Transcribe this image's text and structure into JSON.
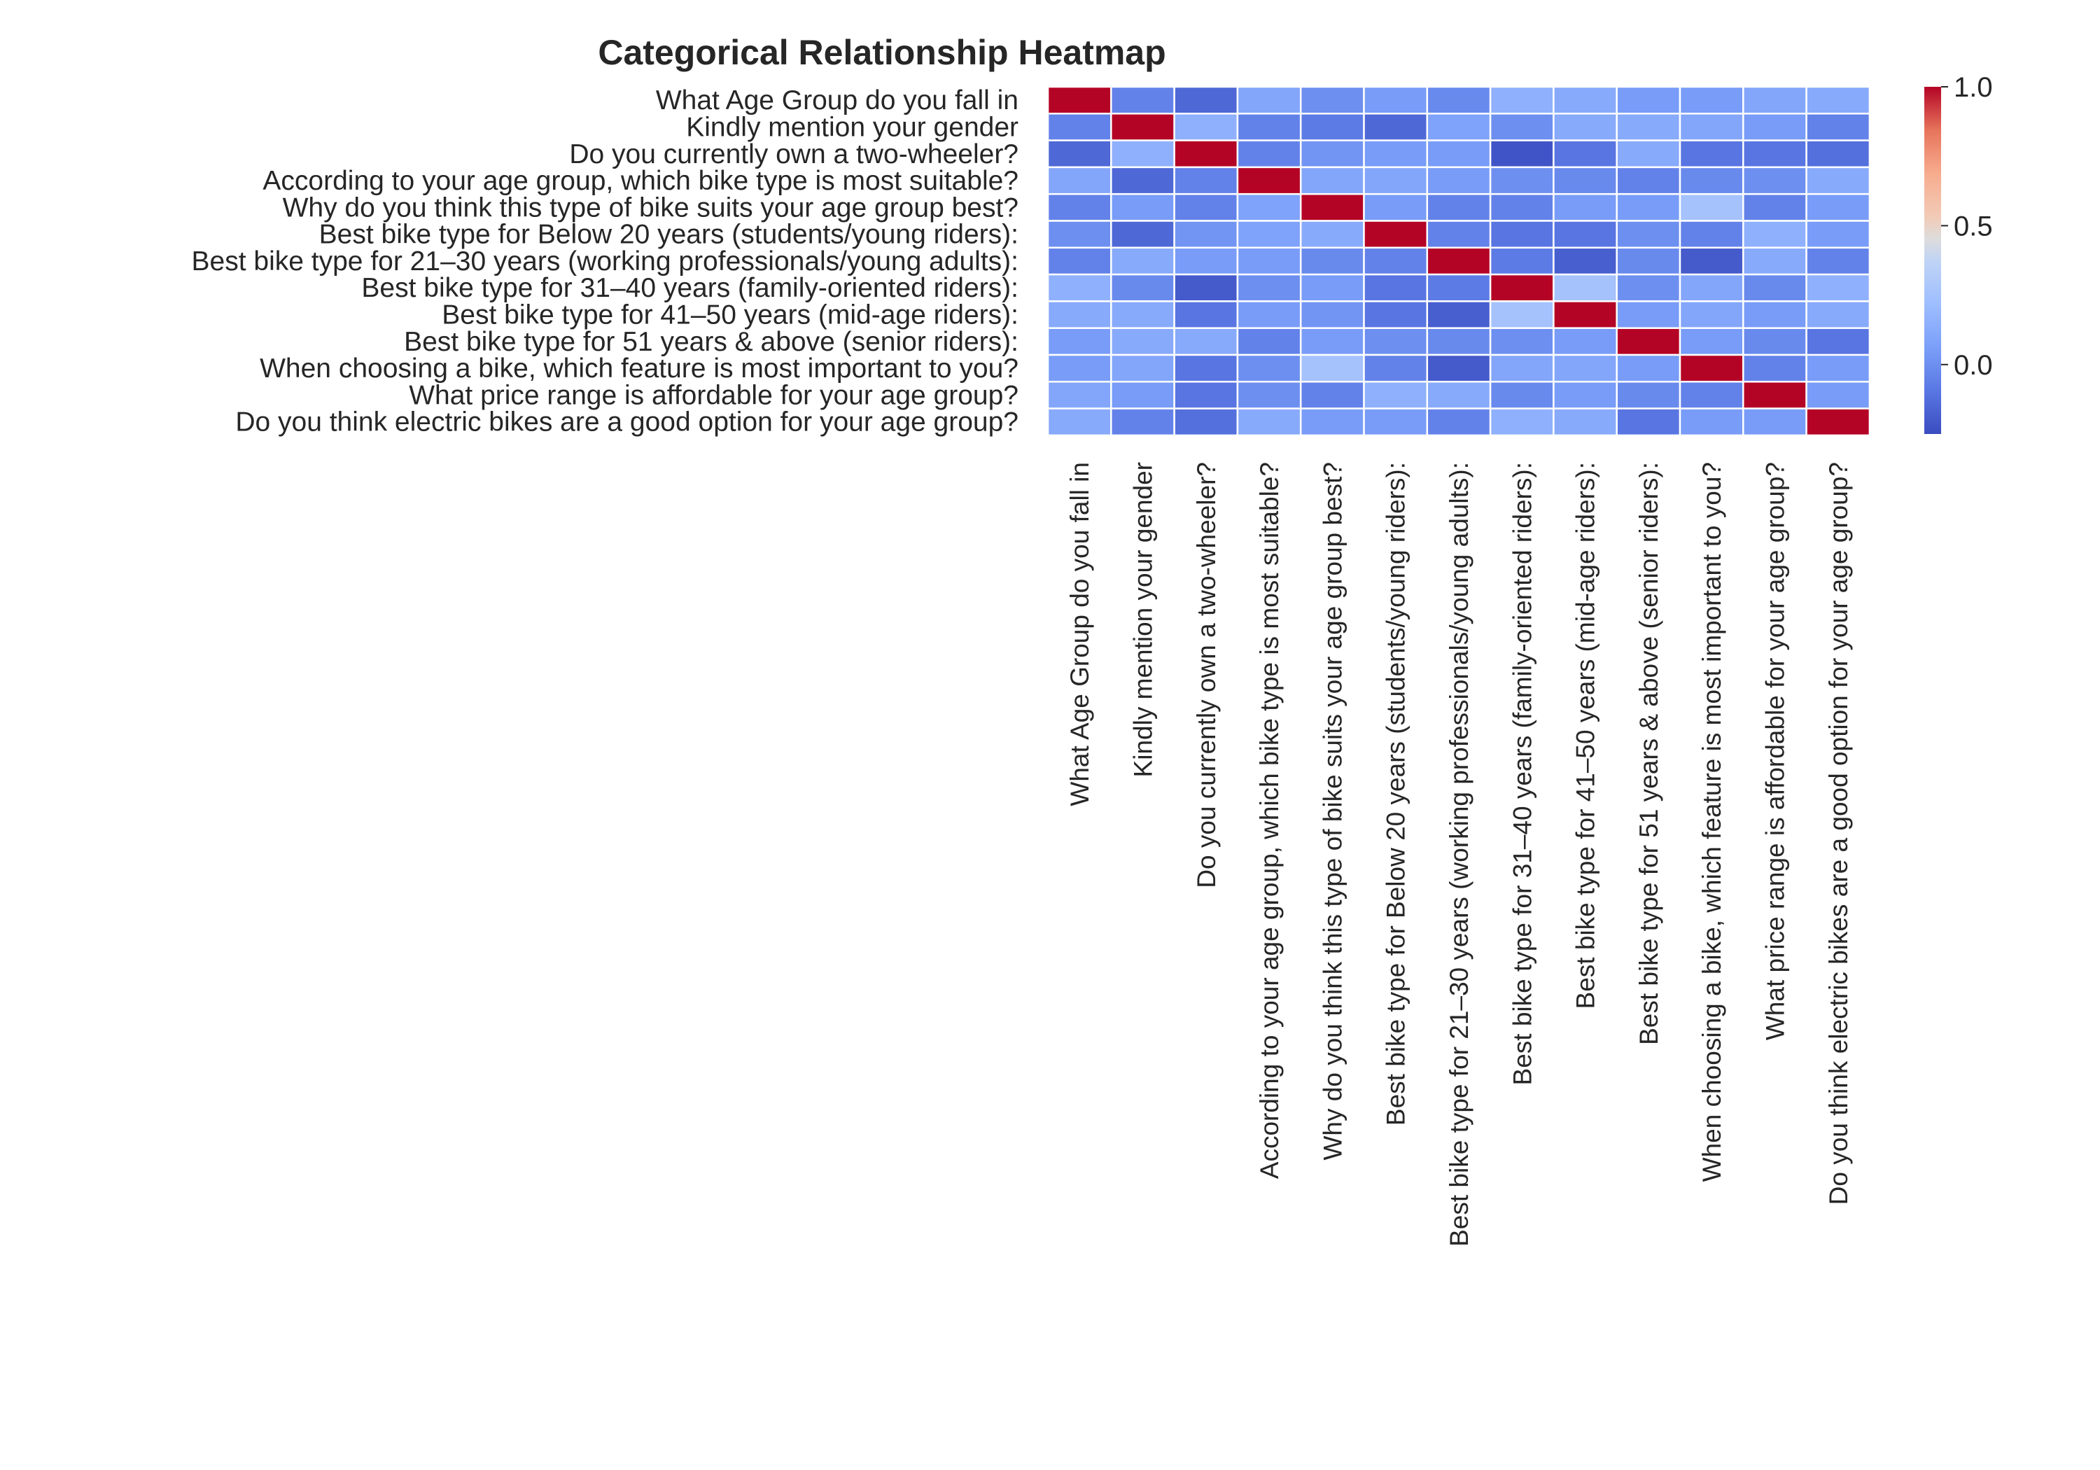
{
  "chart_data": {
    "type": "heatmap",
    "title": "Categorical Relationship Heatmap",
    "colormap": "coolwarm",
    "vmin": -0.25,
    "vmax": 1.0,
    "row_labels": [
      "What  Age Group do you fall in",
      "Kindly mention your gender",
      "Do you currently own a two-wheeler?",
      "According to your age group, which bike type is most suitable?",
      "Why do you think this type of bike suits your age group best?",
      "Best bike type for Below 20 years (students/young riders):",
      "Best bike type for 21–30 years (working professionals/young adults):",
      "Best bike type for 31–40 years (family-oriented riders):",
      "Best bike type for 41–50 years (mid-age riders):",
      "Best bike type for 51 years & above (senior riders):",
      "When choosing a bike, which feature is most important to you?",
      "What price range is affordable for your age group?",
      "Do you think electric bikes are a good option for your age group?"
    ],
    "col_labels": [
      "What  Age Group do you fall in",
      "Kindly mention your gender",
      "Do you currently own a two-wheeler?",
      "According to your age group, which bike type is most suitable?",
      "Why do you think this type of bike suits your age group best?",
      "Best bike type for Below 20 years (students/young riders):",
      "Best bike type for 21–30 years (working professionals/young adults):",
      "Best bike type for 31–40 years (family-oriented riders):",
      "Best bike type for 41–50 years (mid-age riders):",
      "Best bike type for 51 years & above (senior riders):",
      "When choosing a bike, which feature is most important to you?",
      "What price range is affordable for your age group?",
      "Do you think electric bikes are a good option for your age group?"
    ],
    "values": [
      [
        1.0,
        -0.05,
        -0.15,
        0.1,
        0.0,
        0.05,
        -0.02,
        0.15,
        0.12,
        0.05,
        0.05,
        0.1,
        0.12
      ],
      [
        -0.05,
        1.0,
        0.15,
        -0.05,
        -0.08,
        -0.15,
        0.08,
        0.0,
        0.12,
        0.12,
        0.1,
        0.05,
        -0.05
      ],
      [
        -0.15,
        0.15,
        1.0,
        -0.05,
        0.02,
        0.05,
        0.05,
        -0.22,
        -0.1,
        0.12,
        -0.1,
        -0.1,
        -0.12
      ],
      [
        0.1,
        -0.15,
        -0.05,
        1.0,
        0.1,
        0.1,
        0.05,
        0.0,
        -0.02,
        -0.05,
        -0.02,
        0.0,
        0.12
      ],
      [
        -0.05,
        0.05,
        -0.05,
        0.08,
        1.0,
        0.05,
        -0.05,
        -0.05,
        0.05,
        0.05,
        0.25,
        -0.05,
        0.05
      ],
      [
        0.0,
        -0.15,
        0.02,
        0.08,
        0.12,
        1.0,
        -0.05,
        -0.1,
        -0.1,
        0.0,
        -0.05,
        0.15,
        0.05
      ],
      [
        -0.05,
        0.12,
        0.05,
        0.05,
        -0.02,
        -0.05,
        1.0,
        -0.08,
        -0.18,
        -0.02,
        -0.2,
        0.12,
        -0.05
      ],
      [
        0.15,
        -0.02,
        -0.2,
        0.0,
        0.05,
        -0.1,
        -0.08,
        1.0,
        0.25,
        0.0,
        0.1,
        -0.02,
        0.15
      ],
      [
        0.12,
        0.12,
        -0.1,
        0.05,
        0.02,
        -0.1,
        -0.18,
        0.25,
        1.0,
        0.05,
        0.1,
        0.05,
        0.12
      ],
      [
        0.05,
        0.12,
        0.12,
        -0.05,
        0.05,
        0.0,
        -0.02,
        0.0,
        0.05,
        1.0,
        0.05,
        -0.02,
        -0.1
      ],
      [
        0.05,
        0.1,
        -0.1,
        0.0,
        0.25,
        -0.05,
        -0.2,
        0.1,
        0.1,
        0.05,
        1.0,
        -0.05,
        0.05
      ],
      [
        0.1,
        0.05,
        -0.1,
        0.0,
        -0.05,
        0.15,
        0.12,
        -0.02,
        0.05,
        -0.02,
        -0.05,
        1.0,
        0.05
      ],
      [
        0.12,
        -0.05,
        -0.12,
        0.12,
        0.05,
        0.05,
        -0.05,
        0.15,
        0.12,
        -0.1,
        0.05,
        0.05,
        1.0
      ]
    ],
    "colorbar_ticks": [
      "1.0",
      "0.5",
      "0.0"
    ],
    "colorbar_tick_values": [
      1.0,
      0.5,
      0.0
    ]
  }
}
